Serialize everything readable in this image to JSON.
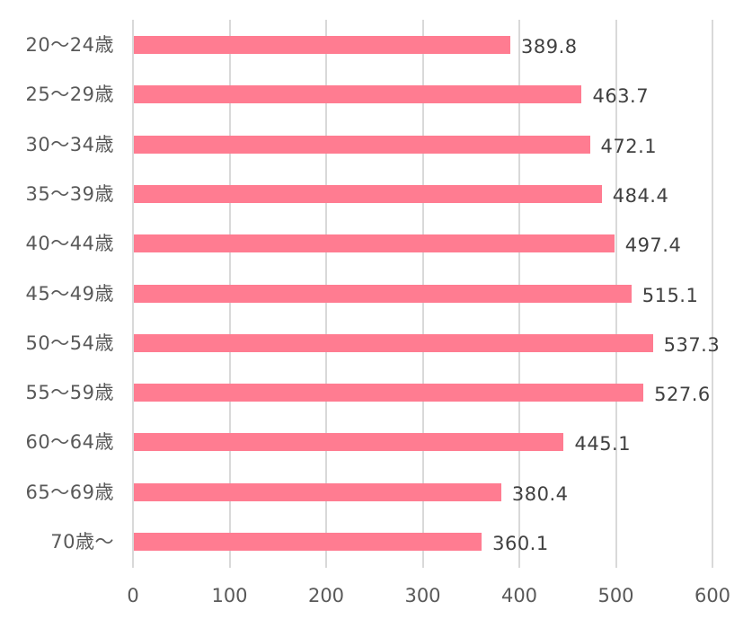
{
  "chart_data": {
    "type": "bar",
    "orientation": "horizontal",
    "title": "",
    "xlabel": "",
    "ylabel": "",
    "categories": [
      "20～24歳",
      "25～29歳",
      "30～34歳",
      "35～39歳",
      "40～44歳",
      "45～49歳",
      "50～54歳",
      "55～59歳",
      "60～64歳",
      "65～69歳",
      "70歳～"
    ],
    "values": [
      389.8,
      463.7,
      472.1,
      484.4,
      497.4,
      515.1,
      537.3,
      527.6,
      445.1,
      380.4,
      360.1
    ],
    "value_labels": [
      "389.8",
      "463.7",
      "472.1",
      "484.4",
      "497.4",
      "515.1",
      "537.3",
      "527.6",
      "445.1",
      "380.4",
      "360.1"
    ],
    "xlim": [
      0,
      600
    ],
    "x_ticks": [
      "0",
      "100",
      "200",
      "300",
      "400",
      "500",
      "600"
    ],
    "grid": true,
    "legend": "none",
    "bar_color": "#FF7C91",
    "grid_color": "#D9D9D9"
  }
}
